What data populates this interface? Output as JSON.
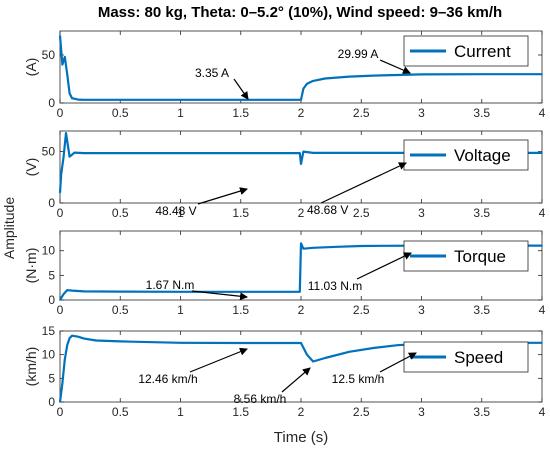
{
  "title": "Mass: 80 kg, Theta: 0–5.2° (10%), Wind speed: 9–36 km/h",
  "ylabel_common": "Amplitude",
  "chart_data": [
    {
      "type": "line",
      "ylabel": "(A)",
      "legend": "Current",
      "xlim": [
        0,
        4
      ],
      "ylim": [
        0,
        75
      ],
      "xticks": [
        0,
        0.5,
        1,
        1.5,
        2,
        2.5,
        3,
        3.5,
        4
      ],
      "yticks": [
        0,
        50
      ],
      "x": [
        0,
        0.02,
        0.04,
        0.06,
        0.08,
        0.1,
        0.15,
        0.2,
        0.5,
        1.0,
        1.5,
        1.99,
        2.0,
        2.02,
        2.05,
        2.1,
        2.2,
        2.4,
        2.6,
        2.8,
        3.0,
        3.5,
        4.0
      ],
      "y": [
        70,
        40,
        48,
        30,
        10,
        5,
        3.5,
        3.35,
        3.35,
        3.35,
        3.35,
        3.35,
        3.35,
        15,
        20,
        23,
        25.5,
        27.5,
        28.5,
        29.2,
        29.8,
        30.0,
        30.0
      ],
      "annotations": [
        {
          "text": "3.35 A",
          "x": 1.55,
          "y": 3.35
        },
        {
          "text": "29.99 A",
          "x": 2.95,
          "y": 29.99
        }
      ],
      "color": "#0072BD",
      "legend_position": "top-right"
    },
    {
      "type": "line",
      "ylabel": "(V)",
      "legend": "Voltage",
      "xlim": [
        0,
        4
      ],
      "ylim": [
        0,
        70
      ],
      "xticks": [
        0,
        0.5,
        1,
        1.5,
        2,
        2.5,
        3,
        3.5,
        4
      ],
      "yticks": [
        0,
        50
      ],
      "x": [
        0,
        0.01,
        0.03,
        0.05,
        0.08,
        0.12,
        0.2,
        0.5,
        1.0,
        1.5,
        1.99,
        2.0,
        2.02,
        2.1,
        2.5,
        3.0,
        3.5,
        4.0
      ],
      "y": [
        10,
        28,
        45,
        68,
        45,
        49,
        48.5,
        48.48,
        48.48,
        48.48,
        48.48,
        38,
        50,
        48.7,
        48.68,
        48.68,
        48.68,
        48.68
      ],
      "annotations": [
        {
          "text": "48.48 V",
          "x": 1.55,
          "y": 48.48
        },
        {
          "text": "48.68 V",
          "x": 2.05,
          "y": 48.68
        }
      ],
      "color": "#0072BD",
      "legend_position": "top-right"
    },
    {
      "type": "line",
      "ylabel": "(N·m)",
      "legend": "Torque",
      "xlim": [
        0,
        4
      ],
      "ylim": [
        0,
        14
      ],
      "xticks": [
        0,
        0.5,
        1,
        1.5,
        2,
        2.5,
        3,
        3.5,
        4
      ],
      "yticks": [
        0,
        5,
        10
      ],
      "x": [
        0,
        0.03,
        0.06,
        0.1,
        0.2,
        0.5,
        1.0,
        1.5,
        1.99,
        2.0,
        2.02,
        2.1,
        2.3,
        2.5,
        2.7,
        3.0,
        3.5,
        4.0
      ],
      "y": [
        0,
        1.2,
        2.0,
        1.9,
        1.75,
        1.7,
        1.67,
        1.67,
        1.67,
        11.5,
        10.4,
        10.6,
        10.8,
        10.95,
        11.0,
        11.03,
        11.03,
        11.03
      ],
      "annotations": [
        {
          "text": "1.67 N.m",
          "x": 1.55,
          "y": 1.67
        },
        {
          "text": "11.03 N.m",
          "x": 2.9,
          "y": 11.03
        }
      ],
      "color": "#0072BD",
      "legend_position": "top-right"
    },
    {
      "type": "line",
      "ylabel": "(km/h)",
      "legend": "Speed",
      "xlim": [
        0,
        4
      ],
      "ylim": [
        0,
        15
      ],
      "xticks": [
        0,
        0.5,
        1,
        1.5,
        2,
        2.5,
        3,
        3.5,
        4
      ],
      "yticks": [
        0,
        5,
        10,
        15
      ],
      "x": [
        0,
        0.02,
        0.04,
        0.06,
        0.08,
        0.1,
        0.15,
        0.2,
        0.3,
        0.5,
        1.0,
        1.5,
        1.99,
        2.0,
        2.05,
        2.1,
        2.2,
        2.4,
        2.6,
        2.8,
        3.0,
        3.5,
        4.0
      ],
      "y": [
        0,
        4,
        9,
        12,
        13.5,
        14,
        13.8,
        13.4,
        13.0,
        12.8,
        12.5,
        12.46,
        12.46,
        12.46,
        10.0,
        8.56,
        9.3,
        10.6,
        11.4,
        12.0,
        12.3,
        12.5,
        12.5
      ],
      "annotations": [
        {
          "text": "12.46 km/h",
          "x": 1.55,
          "y": 12.46
        },
        {
          "text": "8.56 km/h",
          "x": 2.05,
          "y": 8.56
        },
        {
          "text": "12.5 km/h",
          "x": 2.95,
          "y": 12.5
        }
      ],
      "xlabel": "Time (s)",
      "color": "#0072BD",
      "legend_position": "top-right"
    }
  ]
}
